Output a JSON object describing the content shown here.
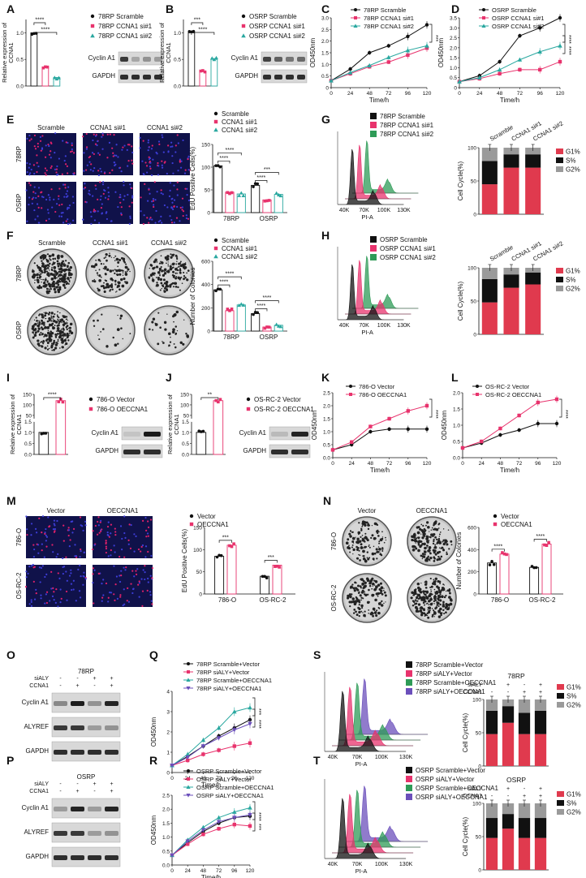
{
  "colors": {
    "black": "#111111",
    "pink": "#e8336d",
    "teal": "#2aa8a0",
    "green": "#2e9b57",
    "purple": "#6b4fbb",
    "gray": "#9a9a9a",
    "red": "#e03a4e"
  },
  "panel_letters": [
    "A",
    "B",
    "C",
    "D",
    "E",
    "F",
    "G",
    "H",
    "I",
    "J",
    "K",
    "L",
    "M",
    "N",
    "O",
    "P",
    "Q",
    "R",
    "S",
    "T"
  ],
  "western_blots": [
    {
      "panel": "A",
      "rows": [
        "Cyclin A1",
        "GAPDH"
      ]
    },
    {
      "panel": "B",
      "rows": [
        "Cyclin A1",
        "GAPDH"
      ]
    },
    {
      "panel": "I",
      "rows": [
        "Cyclin A1",
        "GAPDH"
      ]
    },
    {
      "panel": "J",
      "rows": [
        "Cyclin A1",
        "GAPDH"
      ]
    },
    {
      "panel": "O",
      "title": "78RP",
      "conds": [
        [
          "siALY",
          "-",
          "-",
          "+",
          "+"
        ],
        [
          "CCNA1",
          "-",
          "+",
          "-",
          "+"
        ]
      ],
      "rows": [
        "Cyclin A1",
        "ALYREF",
        "GAPDH"
      ]
    },
    {
      "panel": "P",
      "title": "OSRP",
      "conds": [
        [
          "siALY",
          "-",
          "-",
          "+",
          "+"
        ],
        [
          "CCNA1",
          "-",
          "+",
          "-",
          "+"
        ]
      ],
      "rows": [
        "Cyclin A1",
        "ALYREF",
        "GAPDH"
      ]
    }
  ],
  "image_panels": [
    {
      "panel": "E",
      "cols": [
        "Scramble",
        "CCNA1 si#1",
        "CCNA1 si#2"
      ],
      "rows": [
        "78RP",
        "OSRP"
      ]
    },
    {
      "panel": "F",
      "cols": [
        "Scramble",
        "CCNA1 si#1",
        "CCNA1 si#2"
      ],
      "rows": [
        "78RP",
        "OSRP"
      ]
    },
    {
      "panel": "M",
      "cols": [
        "Vector",
        "OECCNA1"
      ],
      "rows": [
        "786-O",
        "OS-RC-2"
      ]
    },
    {
      "panel": "N",
      "cols": [
        "Vector",
        "OECCNA1"
      ],
      "rows": [
        "786-O",
        "OS-RC-2"
      ]
    }
  ],
  "chart_data": [
    {
      "panel": "A",
      "type": "bar",
      "ylabel": "Relative expression of CCNA1",
      "categories": [
        "78RP Scramble",
        "78RP CCNA1 si#1",
        "78RP CCNA1 si#2"
      ],
      "values": [
        1.0,
        0.35,
        0.16
      ],
      "ylim": [
        0,
        1.25
      ],
      "yticks": [
        "0.0",
        "0.5",
        "1.0"
      ],
      "sig": [
        "****",
        "****"
      ],
      "legend": [
        "78RP Scramble",
        "78RP CCNA1 si#1",
        "78RP CCNA1 si#2"
      ]
    },
    {
      "panel": "B",
      "type": "bar",
      "ylabel": "Relative expression of CCNA1",
      "categories": [
        "OSRP Scramble",
        "OSRP CCNA1 si#1",
        "OSRP CCNA1 si#2"
      ],
      "values": [
        1.0,
        0.27,
        0.5
      ],
      "ylim": [
        0,
        1.25
      ],
      "yticks": [
        "0.0",
        "0.5",
        "1.0"
      ],
      "sig": [
        "***",
        "****"
      ],
      "legend": [
        "OSRP Scramble",
        "OSRP CCNA1 si#1",
        "OSRP CCNA1 si#2"
      ]
    },
    {
      "panel": "C",
      "type": "line",
      "xlabel": "Time/h",
      "ylabel": "OD450nm",
      "x": [
        0,
        24,
        48,
        72,
        96,
        120
      ],
      "ylim": [
        0,
        3
      ],
      "yticks": [
        "0",
        "0.5",
        "1.0",
        "1.5",
        "2.0",
        "2.5",
        "3.0"
      ],
      "series": [
        {
          "name": "78RP Scramble",
          "values": [
            0.3,
            0.8,
            1.5,
            1.8,
            2.2,
            2.7
          ]
        },
        {
          "name": "78RP CCNA1 si#1",
          "values": [
            0.3,
            0.6,
            0.9,
            1.1,
            1.4,
            1.7
          ]
        },
        {
          "name": "78RP CCNA1 si#2",
          "values": [
            0.3,
            0.65,
            0.95,
            1.3,
            1.6,
            1.8
          ]
        }
      ],
      "sig": [
        "***"
      ]
    },
    {
      "panel": "D",
      "type": "line",
      "xlabel": "Time/h",
      "ylabel": "OD450nm",
      "x": [
        0,
        24,
        48,
        72,
        96,
        120
      ],
      "ylim": [
        0,
        3.5
      ],
      "yticks": [
        "0",
        "0.5",
        "1.0",
        "1.5",
        "2.0",
        "2.5",
        "3.0",
        "3.5"
      ],
      "series": [
        {
          "name": "OSRP Scramble",
          "values": [
            0.3,
            0.6,
            1.3,
            2.6,
            3.0,
            3.5
          ]
        },
        {
          "name": "OSRP CCNA1 si#1",
          "values": [
            0.3,
            0.45,
            0.7,
            0.9,
            0.9,
            1.3
          ]
        },
        {
          "name": "OSRP CCNA1 si#2",
          "values": [
            0.3,
            0.5,
            0.9,
            1.4,
            1.8,
            2.1
          ]
        }
      ],
      "sig": [
        "****",
        "****"
      ]
    },
    {
      "panel": "E",
      "type": "bar",
      "ylabel": "EdU Positive Cells(%)",
      "categories": [
        "78RP",
        "OSRP"
      ],
      "series": [
        {
          "name": "Scramble",
          "values": [
            103,
            60
          ]
        },
        {
          "name": "CCNA1 si#1",
          "values": [
            45,
            28
          ]
        },
        {
          "name": "CCNA1 si#2",
          "values": [
            41,
            40
          ]
        }
      ],
      "ylim": [
        0,
        150
      ],
      "yticks": [
        "0",
        "50",
        "100",
        "150"
      ],
      "sig": [
        "****",
        "****",
        "****",
        "***"
      ]
    },
    {
      "panel": "F",
      "type": "bar",
      "ylabel": "Number of Colonies",
      "categories": [
        "78RP",
        "OSRP"
      ],
      "series": [
        {
          "name": "Scramble",
          "values": [
            355,
            150
          ]
        },
        {
          "name": "CCNA1 si#1",
          "values": [
            175,
            35
          ]
        },
        {
          "name": "CCNA1 si#2",
          "values": [
            225,
            50
          ]
        }
      ],
      "ylim": [
        0,
        600
      ],
      "yticks": [
        "0",
        "200",
        "400",
        "600"
      ],
      "sig": [
        "****",
        "****",
        "****",
        "****"
      ]
    },
    {
      "panel": "G",
      "type": "histogram",
      "xlabel": "PI-A",
      "xticks": [
        "40K",
        "70K",
        "100K",
        "130K"
      ],
      "legend": [
        "78RP Scramble",
        "78RP CCNA1 si#1",
        "78RP CCNA1 si#2"
      ]
    },
    {
      "panel": "G",
      "type": "bar",
      "stacked": true,
      "ylabel": "Cell Cycle(%)",
      "categories": [
        "Scramble",
        "CCNA1 si#1",
        "CCNA1 si#2"
      ],
      "series": [
        {
          "name": "G1%",
          "values": [
            45,
            70,
            70
          ]
        },
        {
          "name": "S%",
          "values": [
            35,
            20,
            20
          ]
        },
        {
          "name": "G2%",
          "values": [
            20,
            10,
            10
          ]
        }
      ],
      "yticks": [
        "0",
        "50",
        "100"
      ]
    },
    {
      "panel": "H",
      "type": "histogram",
      "xlabel": "PI-A",
      "xticks": [
        "40K",
        "70K",
        "100K",
        "130K"
      ],
      "legend": [
        "OSRP Scramble",
        "OSRP CCNA1 si#1",
        "OSRP CCNA1 si#2"
      ]
    },
    {
      "panel": "H",
      "type": "bar",
      "stacked": true,
      "ylabel": "Cell Cycle(%)",
      "categories": [
        "Scramble",
        "CCNA1 si#1",
        "CCNA1 si#2"
      ],
      "series": [
        {
          "name": "G1%",
          "values": [
            48,
            70,
            75
          ]
        },
        {
          "name": "S%",
          "values": [
            35,
            20,
            18
          ]
        },
        {
          "name": "G2%",
          "values": [
            17,
            10,
            7
          ]
        }
      ],
      "yticks": [
        "0",
        "50",
        "100"
      ]
    },
    {
      "panel": "I",
      "type": "bar",
      "ylabel": "Relative expression of CCNA1",
      "categories": [
        "786-O Vector",
        "786-O OECCNA1"
      ],
      "values": [
        1.0,
        120
      ],
      "yticks": [
        "0.0",
        "0.5",
        "1.0",
        "1.5",
        "50",
        "100",
        "150"
      ],
      "sig": [
        "****"
      ],
      "legend": [
        "786-O Vector",
        "786-O OECCNA1"
      ]
    },
    {
      "panel": "J",
      "type": "bar",
      "ylabel": "Relative expression of CCNA1",
      "categories": [
        "OS-RC-2 Vector",
        "OS-RC-2 OECCNA1"
      ],
      "values": [
        1.0,
        120
      ],
      "yticks": [
        "0.0",
        "0.5",
        "1.0",
        "1.5",
        "50",
        "100",
        "150"
      ],
      "sig": [
        "**"
      ],
      "legend": [
        "OS-RC-2 Vector",
        "OS-RC-2 OECCNA1"
      ]
    },
    {
      "panel": "K",
      "type": "line",
      "xlabel": "Time/h",
      "ylabel": "OD450nm",
      "x": [
        0,
        24,
        48,
        72,
        96,
        120
      ],
      "ylim": [
        0,
        2.5
      ],
      "yticks": [
        "0.0",
        "0.5",
        "1.0",
        "1.5",
        "2.0",
        "2.5"
      ],
      "series": [
        {
          "name": "786-O Vector",
          "values": [
            0.3,
            0.5,
            1.0,
            1.1,
            1.1,
            1.1
          ]
        },
        {
          "name": "786-O OECCNA1",
          "values": [
            0.3,
            0.6,
            1.2,
            1.5,
            1.8,
            2.0
          ]
        }
      ],
      "sig": [
        "****"
      ]
    },
    {
      "panel": "L",
      "type": "line",
      "xlabel": "Time/h",
      "ylabel": "OD450nm",
      "x": [
        0,
        24,
        48,
        72,
        96,
        120
      ],
      "ylim": [
        0,
        2.0
      ],
      "yticks": [
        "0.0",
        "0.5",
        "1.0",
        "1.5",
        "2.0"
      ],
      "series": [
        {
          "name": "OS-RC-2 Vector",
          "values": [
            0.3,
            0.45,
            0.7,
            0.85,
            1.05,
            1.05
          ]
        },
        {
          "name": "OS-RC-2 OECCNA1",
          "values": [
            0.3,
            0.5,
            0.9,
            1.3,
            1.7,
            1.8
          ]
        }
      ],
      "sig": [
        "****"
      ]
    },
    {
      "panel": "M",
      "type": "bar",
      "ylabel": "EdU Positive Cells(%)",
      "categories": [
        "786-O",
        "OS-RC-2"
      ],
      "series": [
        {
          "name": "Vector",
          "values": [
            85,
            40
          ]
        },
        {
          "name": "OECCNA1",
          "values": [
            110,
            65
          ]
        }
      ],
      "ylim": [
        0,
        150
      ],
      "yticks": [
        "0",
        "50",
        "100",
        "150"
      ],
      "sig": [
        "***",
        "***"
      ]
    },
    {
      "panel": "N",
      "type": "bar",
      "ylabel": "Number of Colonies",
      "categories": [
        "786-O",
        "OS-RC-2"
      ],
      "series": [
        {
          "name": "Vector",
          "values": [
            280,
            240
          ]
        },
        {
          "name": "OECCNA1",
          "values": [
            360,
            450
          ]
        }
      ],
      "ylim": [
        0,
        600
      ],
      "yticks": [
        "0",
        "200",
        "400",
        "600"
      ],
      "sig": [
        "****",
        "****"
      ]
    },
    {
      "panel": "Q",
      "type": "line",
      "xlabel": "Time/h",
      "ylabel": "OD450nm",
      "x": [
        0,
        24,
        48,
        72,
        96,
        120
      ],
      "ylim": [
        0,
        4
      ],
      "yticks": [
        "0",
        "1",
        "2",
        "3",
        "4"
      ],
      "series": [
        {
          "name": "78RP Scramble+Vector",
          "values": [
            0.35,
            0.8,
            1.3,
            1.8,
            2.2,
            2.6
          ]
        },
        {
          "name": "78RP siALY+Vector",
          "values": [
            0.35,
            0.6,
            0.9,
            1.1,
            1.3,
            1.45
          ]
        },
        {
          "name": "78RP Scramble+OECCNA1",
          "values": [
            0.35,
            0.9,
            1.6,
            2.2,
            3.0,
            3.2
          ]
        },
        {
          "name": "78RP siALY+OECCNA1",
          "values": [
            0.35,
            0.75,
            1.3,
            1.7,
            2.1,
            2.4
          ]
        }
      ],
      "sig": [
        "***",
        "****"
      ]
    },
    {
      "panel": "R",
      "type": "line",
      "xlabel": "Time/h",
      "ylabel": "OD450nm",
      "x": [
        0,
        24,
        48,
        72,
        96,
        120
      ],
      "ylim": [
        0,
        2.5
      ],
      "yticks": [
        "0.0",
        "0.5",
        "1.0",
        "1.5",
        "2.0",
        "2.5"
      ],
      "series": [
        {
          "name": "OSRP Scramble+Vector",
          "values": [
            0.35,
            0.8,
            1.2,
            1.5,
            1.7,
            1.75
          ]
        },
        {
          "name": "OSRP siALY+Vector",
          "values": [
            0.35,
            0.75,
            1.1,
            1.3,
            1.45,
            1.4
          ]
        },
        {
          "name": "OSRP Scramble+OECCNA1",
          "values": [
            0.35,
            0.9,
            1.35,
            1.7,
            1.9,
            2.05
          ]
        },
        {
          "name": "OSRP siALY+OECCNA1",
          "values": [
            0.35,
            0.85,
            1.25,
            1.55,
            1.7,
            1.8
          ]
        }
      ],
      "sig": [
        "****",
        "***"
      ]
    },
    {
      "panel": "S",
      "type": "histogram",
      "xlabel": "PI-A",
      "xticks": [
        "40K",
        "70K",
        "100K",
        "130K"
      ],
      "legend": [
        "78RP Scramble+Vector",
        "78RP siALY+Vector",
        "78RP Scramble+OECCNA1",
        "78RP siALY+OECCNA1"
      ]
    },
    {
      "panel": "S",
      "type": "bar",
      "stacked": true,
      "title": "78RP",
      "ylabel": "Cell Cycle(%)",
      "conds": [
        [
          "siALY",
          "-",
          "+",
          "-",
          "+"
        ],
        [
          "CCNA1",
          "-",
          "-",
          "+",
          "+"
        ]
      ],
      "series": [
        {
          "name": "G1%",
          "values": [
            48,
            65,
            48,
            48
          ]
        },
        {
          "name": "S%",
          "values": [
            35,
            25,
            32,
            35
          ]
        },
        {
          "name": "G2%",
          "values": [
            17,
            10,
            20,
            17
          ]
        }
      ],
      "yticks": [
        "0",
        "50",
        "100"
      ]
    },
    {
      "panel": "T",
      "type": "histogram",
      "xlabel": "PI-A",
      "xticks": [
        "40K",
        "70K",
        "100K",
        "130K"
      ],
      "legend": [
        "OSRP Scramble+Vector",
        "OSRP siALY+Vector",
        "OSRP Scramble+OECCNA1",
        "OSRP siALY+OECCNA1"
      ]
    },
    {
      "panel": "T",
      "type": "bar",
      "stacked": true,
      "title": "OSRP",
      "ylabel": "Cell Cycle(%)",
      "conds": [
        [
          "siALY",
          "-",
          "+",
          "-",
          "+"
        ],
        [
          "CCNA1",
          "-",
          "-",
          "+",
          "+"
        ]
      ],
      "series": [
        {
          "name": "G1%",
          "values": [
            48,
            62,
            48,
            48
          ]
        },
        {
          "name": "S%",
          "values": [
            30,
            22,
            30,
            30
          ]
        },
        {
          "name": "G2%",
          "values": [
            22,
            16,
            22,
            22
          ]
        }
      ],
      "yticks": [
        "0",
        "50",
        "100"
      ]
    }
  ]
}
